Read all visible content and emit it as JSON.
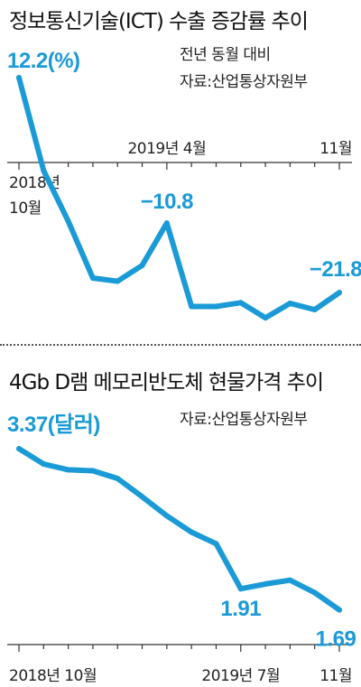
{
  "colors": {
    "line": "#1a9ad6",
    "text": "#111111",
    "axis": "#333333"
  },
  "chart_data": [
    {
      "type": "line",
      "title": "정보통신기술(ICT) 수출 증감률 추이",
      "subtitle_lines": [
        "전년 동월 대비",
        "자료:산업통상자원부"
      ],
      "unit_label": "12.2(%)",
      "x_tick_labels": [
        "2018년 10월",
        "2019년 4월",
        "11월"
      ],
      "x": [
        "2018-10",
        "2018-11",
        "2018-12",
        "2019-01",
        "2019-02",
        "2019-03",
        "2019-04",
        "2019-05",
        "2019-06",
        "2019-07",
        "2019-08",
        "2019-09",
        "2019-10",
        "2019-11"
      ],
      "values": [
        12.2,
        -2.5,
        -10.5,
        -19.5,
        -20.0,
        -17.5,
        -10.8,
        -24.0,
        -24.0,
        -23.4,
        -25.8,
        -23.5,
        -24.5,
        -21.8
      ],
      "annotations": [
        {
          "index": 0,
          "text": "12.2(%)"
        },
        {
          "index": 6,
          "text": "−10.8"
        },
        {
          "index": 13,
          "text": "−21.8"
        }
      ]
    },
    {
      "type": "line",
      "title": "4Gb D램 메모리반도체 현물가격 추이",
      "subtitle_lines": [
        "자료:산업통상자원부"
      ],
      "unit_label": "3.37(달러)",
      "x_tick_labels": [
        "2018년 10월",
        "2019년 7월",
        "11월"
      ],
      "x": [
        "2018-10",
        "2018-11",
        "2018-12",
        "2019-01",
        "2019-02",
        "2019-03",
        "2019-04",
        "2019-05",
        "2019-06",
        "2019-07",
        "2019-08",
        "2019-09",
        "2019-10",
        "2019-11"
      ],
      "values": [
        3.37,
        3.21,
        3.15,
        3.14,
        3.06,
        2.87,
        2.67,
        2.5,
        2.38,
        1.91,
        1.96,
        2.0,
        1.87,
        1.69
      ],
      "annotations": [
        {
          "index": 0,
          "text": "3.37(달러)"
        },
        {
          "index": 9,
          "text": "1.91"
        },
        {
          "index": 13,
          "text": "1.69"
        }
      ]
    }
  ]
}
